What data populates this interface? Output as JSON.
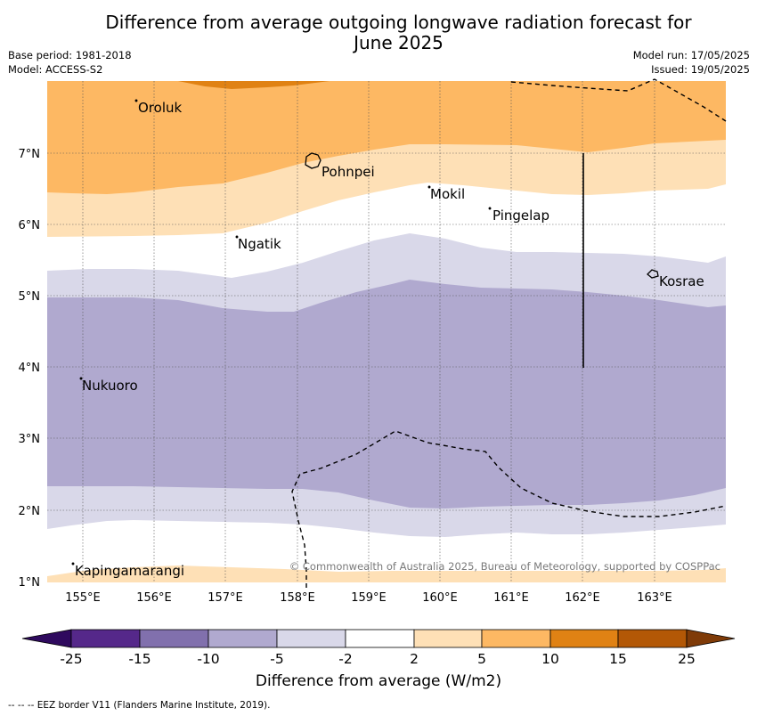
{
  "header": {
    "title_line1": "Difference from average outgoing longwave radiation forecast for",
    "title_line2": "June 2025",
    "base_period": "Base period: 1981-2018",
    "model": "Model: ACCESS-S2",
    "model_run": "Model run: 17/05/2025",
    "issued": "Issued: 19/05/2025"
  },
  "map": {
    "lon_labels": [
      "155°E",
      "156°E",
      "157°E",
      "158°E",
      "159°E",
      "160°E",
      "161°E",
      "162°E",
      "163°E"
    ],
    "lat_labels": [
      "7°N",
      "6°N",
      "5°N",
      "4°N",
      "3°N",
      "2°N",
      "1°N"
    ],
    "places": [
      "Oroluk",
      "Pohnpei",
      "Mokil",
      "Pingelap",
      "Ngatik",
      "Kosrae",
      "Nukuoro",
      "Kapingamarangi"
    ],
    "copyright": "© Commonwealth of Australia 2025, Bureau of Meteorology, supported by COSPPac"
  },
  "colorbar": {
    "colors": [
      "#2f0a5e",
      "#55288a",
      "#8170ad",
      "#b0a9cf",
      "#d9d8e9",
      "#ffffff",
      "#fee0b6",
      "#fdb863",
      "#e08214",
      "#b35806",
      "#7f3b08"
    ],
    "tick_labels": [
      "-25",
      "-15",
      "-10",
      "-5",
      "-2",
      "2",
      "5",
      "10",
      "15",
      "25"
    ],
    "title": "Difference from average (W/m2)"
  },
  "footer": {
    "legend_text": "--  --  -- EEZ border V11 (Flanders Marine Institute, 2019)."
  }
}
